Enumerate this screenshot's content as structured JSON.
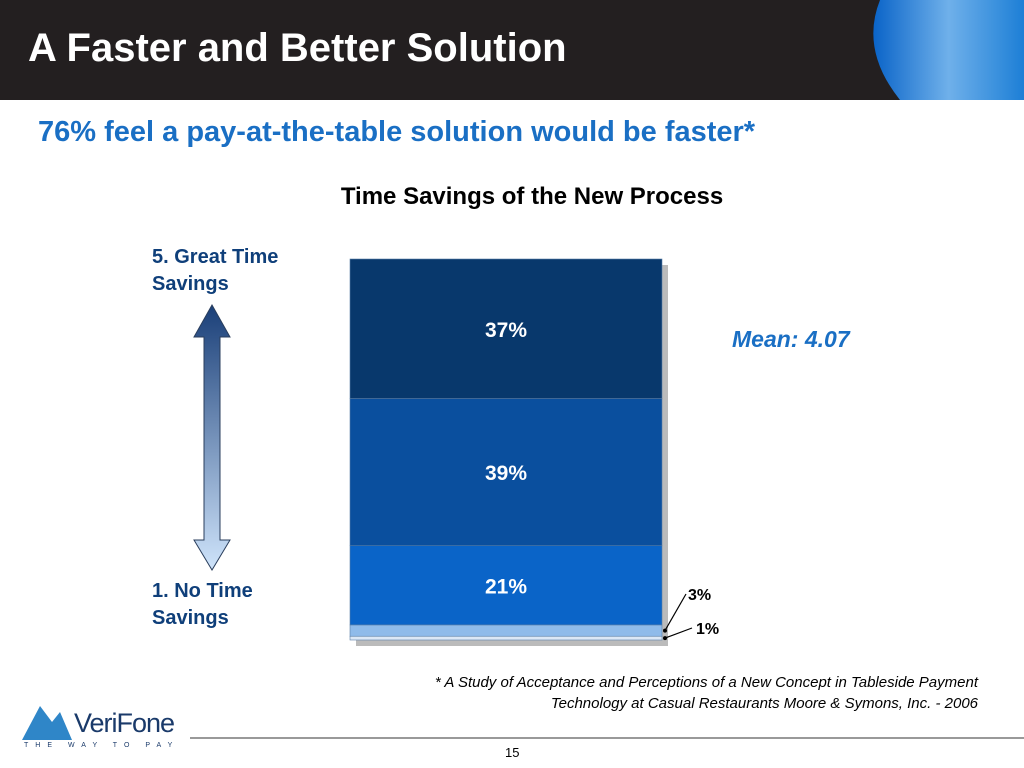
{
  "header": {
    "title": "A Faster and Better Solution"
  },
  "subtitle": "76% feel a pay-at-the-table solution would be faster*",
  "chart_data": {
    "type": "stacked_bar",
    "title": "Time Savings of the New Process",
    "values": [
      1,
      3,
      21,
      39,
      37
    ],
    "value_labels": [
      "1%",
      "3%",
      "21%",
      "39%",
      "37%"
    ],
    "colors": [
      "#dce8f6",
      "#8fbbea",
      "#0a64c8",
      "#0a4f9e",
      "#08386c"
    ],
    "scale_top_label": "5. Great Time Savings",
    "scale_bottom_label": "1. No Time Savings",
    "annotation": "Mean: 4.07"
  },
  "footnote": "* A Study of Acceptance and Perceptions of a New Concept in Tableside Payment Technology at Casual Restaurants Moore & Symons, Inc. - 2006",
  "page_number": "15",
  "logo": {
    "name": "VeriFone",
    "tagline": "THE WAY TO PAY"
  }
}
